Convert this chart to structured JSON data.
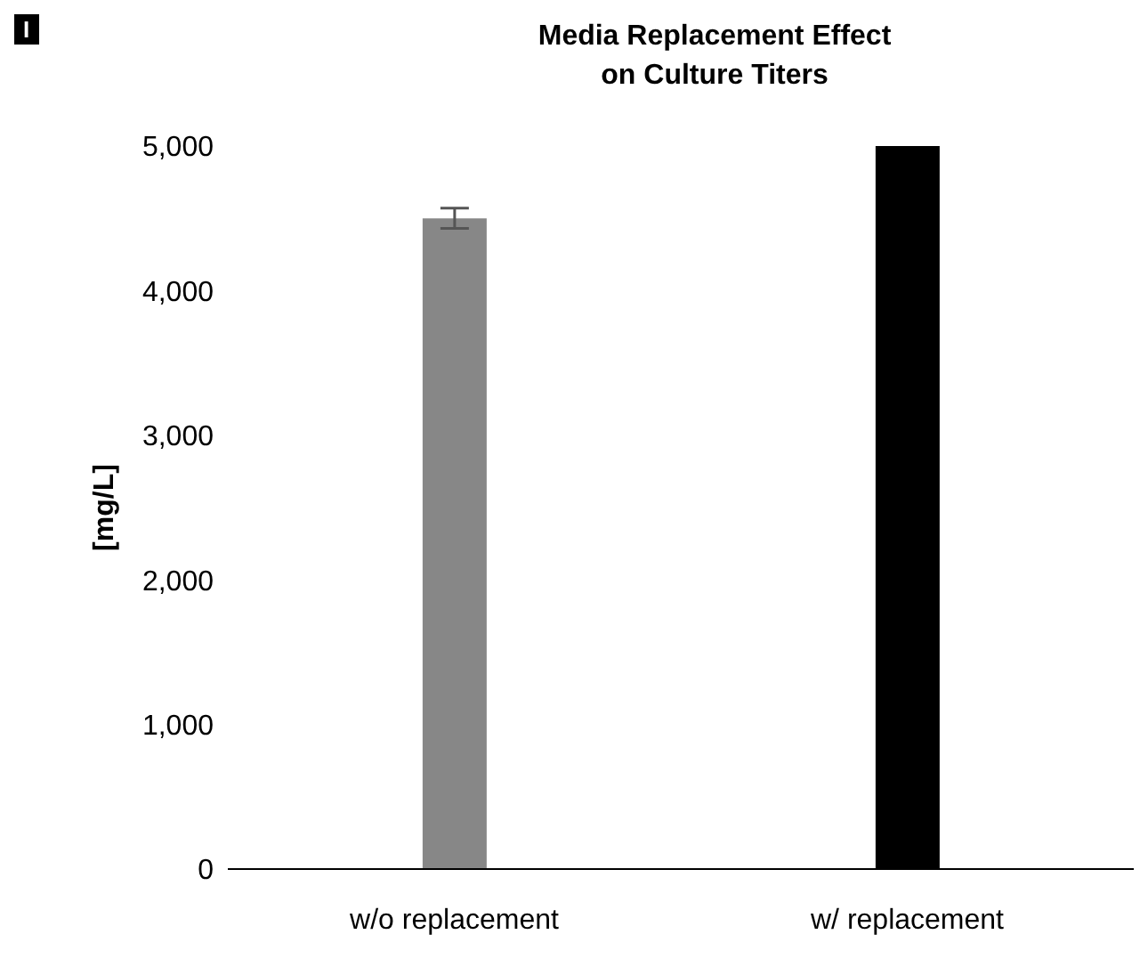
{
  "chart_data": {
    "type": "bar",
    "title": "Media Replacement Effect\non Culture Titers",
    "ylabel": "[mg/L]",
    "annotations": [
      "I"
    ],
    "categories": [
      "w/o replacement",
      "w/ replacement"
    ],
    "values": [
      4500,
      5000
    ],
    "colors": [
      "#878787",
      "#000000"
    ],
    "errors": [
      70,
      null
    ],
    "ylim": [
      0,
      5000
    ],
    "yticks": [
      0,
      {
        "value": 1000,
        "label": "1,000"
      },
      {
        "value": 2000,
        "label": "2,000"
      },
      {
        "value": 3000,
        "label": "3,000"
      },
      {
        "value": 4000,
        "label": "4,000"
      },
      {
        "value": 5000,
        "label": "5,000"
      }
    ],
    "grid": false
  }
}
